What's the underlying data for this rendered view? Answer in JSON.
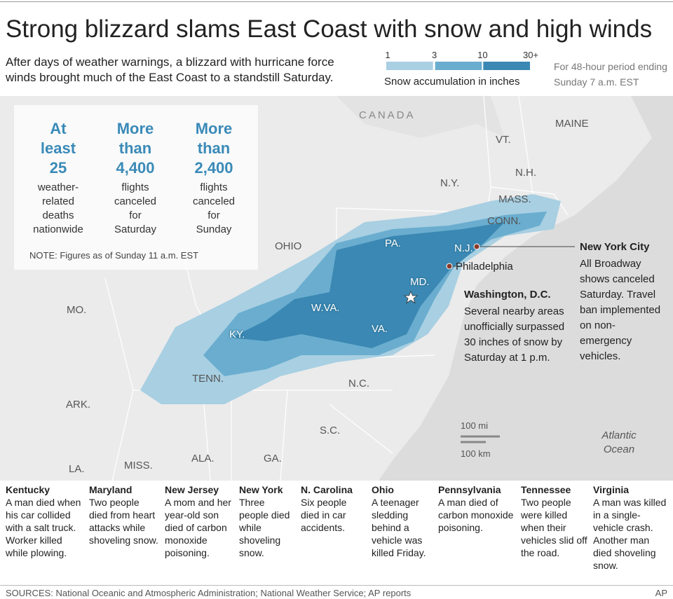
{
  "header": {
    "title": "Strong blizzard slams East Coast with snow and high winds",
    "subtitle": "After days of weather warnings, a blizzard with hurricane force winds brought much of the East Coast to a standstill Saturday."
  },
  "legend": {
    "ticks": [
      "1",
      "3",
      "10",
      "30+"
    ],
    "colors": [
      "#a8cfe2",
      "#6aadcf",
      "#3a88b3"
    ],
    "title": "Snow accumulation in inches",
    "period": "For 48-hour period ending Sunday 7 a.m. EST"
  },
  "stats": [
    {
      "headline": "At least 25",
      "text": "weather-related deaths nationwide"
    },
    {
      "headline": "More than 4,400",
      "text": "flights canceled for Saturday"
    },
    {
      "headline": "More than 2,400",
      "text": "flights canceled for Sunday"
    }
  ],
  "note": "NOTE: Figures as of Sunday 11 a.m. EST",
  "map_labels": [
    "CANADA",
    "MAINE",
    "VT.",
    "N.H.",
    "N.Y.",
    "MASS.",
    "CONN.",
    "N.J.",
    "PA.",
    "OHIO",
    "MD.",
    "W.VA.",
    "VA.",
    "KY.",
    "MO.",
    "TENN.",
    "N.C.",
    "ARK.",
    "S.C.",
    "LA.",
    "MISS.",
    "ALA.",
    "GA.",
    "Atlantic Ocean"
  ],
  "cities": [
    {
      "name": "New York City",
      "note": "All Broadway shows canceled Saturday. Travel ban implemented on non-emergency vehicles."
    },
    {
      "name": "Philadelphia"
    },
    {
      "name": "Washington, D.C.",
      "note": "Several nearby areas unofficially surpassed 30 inches of snow by Saturday at 1 p.m."
    }
  ],
  "scale": [
    "100 mi",
    "100 km"
  ],
  "states": [
    {
      "name": "Kentucky",
      "text": "A man died when his car collided with a salt truck. Worker killed while plowing."
    },
    {
      "name": "Maryland",
      "text": "Two people died from heart attacks while shoveling snow."
    },
    {
      "name": "New Jersey",
      "text": "A mom and her year-old son died of carbon monoxide poisoning."
    },
    {
      "name": "New York",
      "text": "Three people died while shoveling snow."
    },
    {
      "name": "N. Carolina",
      "text": "Six people died in car accidents."
    },
    {
      "name": "Ohio",
      "text": "A teenager sledding behind a vehicle was killed Friday."
    },
    {
      "name": "Pennsylvania",
      "text": "A man died of carbon monoxide poisoning."
    },
    {
      "name": "Tennessee",
      "text": "Two people were killed when their vehicles slid off the road."
    },
    {
      "name": "Virginia",
      "text": "A man was killed in a single-vehicle crash. Another man died shoveling snow."
    }
  ],
  "footer": {
    "sources": "SOURCES: National Oceanic and Atmospheric Administration; National Weather Service; AP reports",
    "credit": "AP"
  }
}
